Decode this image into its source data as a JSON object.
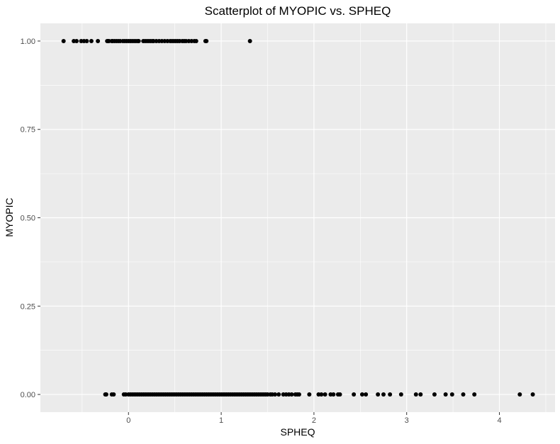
{
  "chart_data": {
    "type": "scatter",
    "title": "Scatterplot of MYOPIC vs. SPHEQ",
    "xlabel": "SPHEQ",
    "ylabel": "MYOPIC",
    "xlim": [
      -0.95,
      4.6
    ],
    "ylim": [
      -0.05,
      1.05
    ],
    "x_ticks": [
      0,
      1,
      2,
      3,
      4
    ],
    "x_tick_labels": [
      "0",
      "1",
      "2",
      "3",
      "4"
    ],
    "y_ticks": [
      0,
      0.25,
      0.5,
      0.75,
      1
    ],
    "y_tick_labels": [
      "0.00",
      "0.25",
      "0.50",
      "0.75",
      "1.00"
    ],
    "grid": true,
    "legend": "none",
    "colors": {
      "panel": "#ebebeb",
      "grid_major": "#ffffff",
      "point": "#000000"
    },
    "series": [
      {
        "values_x": [
          -0.7,
          -0.59,
          -0.56,
          -0.51,
          -0.48,
          -0.45,
          -0.4,
          -0.33,
          -0.23,
          -0.22,
          -0.21,
          -0.18,
          -0.17,
          -0.15,
          -0.13,
          -0.11,
          -0.09,
          -0.06,
          -0.04,
          -0.02,
          0.0,
          0.02,
          0.04,
          0.06,
          0.08,
          0.1,
          0.11,
          0.16,
          0.18,
          0.2,
          0.22,
          0.24,
          0.26,
          0.27,
          0.3,
          0.33,
          0.36,
          0.39,
          0.42,
          0.45,
          0.47,
          0.49,
          0.51,
          0.53,
          0.55,
          0.58,
          0.6,
          0.62,
          0.65,
          0.68,
          0.71,
          0.73,
          0.83,
          0.84,
          1.31
        ],
        "values_y": [
          1,
          1,
          1,
          1,
          1,
          1,
          1,
          1,
          1,
          1,
          1,
          1,
          1,
          1,
          1,
          1,
          1,
          1,
          1,
          1,
          1,
          1,
          1,
          1,
          1,
          1,
          1,
          1,
          1,
          1,
          1,
          1,
          1,
          1,
          1,
          1,
          1,
          1,
          1,
          1,
          1,
          1,
          1,
          1,
          1,
          1,
          1,
          1,
          1,
          1,
          1,
          1,
          1,
          1,
          1
        ]
      },
      {
        "values_x": [
          -0.25,
          -0.24,
          -0.18,
          -0.16,
          -0.05,
          -0.03,
          0.0,
          0.02,
          0.04,
          0.06,
          0.08,
          0.1,
          0.12,
          0.14,
          0.16,
          0.18,
          0.2,
          0.22,
          0.24,
          0.26,
          0.28,
          0.3,
          0.32,
          0.34,
          0.36,
          0.38,
          0.4,
          0.42,
          0.44,
          0.46,
          0.48,
          0.5,
          0.52,
          0.54,
          0.56,
          0.58,
          0.6,
          0.62,
          0.64,
          0.66,
          0.68,
          0.7,
          0.72,
          0.74,
          0.76,
          0.78,
          0.8,
          0.82,
          0.84,
          0.86,
          0.88,
          0.9,
          0.92,
          0.94,
          0.96,
          0.98,
          1.0,
          1.02,
          1.04,
          1.06,
          1.08,
          1.1,
          1.12,
          1.14,
          1.16,
          1.18,
          1.2,
          1.22,
          1.24,
          1.26,
          1.28,
          1.3,
          1.32,
          1.34,
          1.36,
          1.38,
          1.4,
          1.42,
          1.44,
          1.46,
          1.48,
          1.5,
          1.53,
          1.55,
          1.58,
          1.62,
          1.67,
          1.7,
          1.73,
          1.76,
          1.8,
          1.82,
          1.84,
          1.95,
          2.05,
          2.08,
          2.12,
          2.18,
          2.21,
          2.26,
          2.28,
          2.43,
          2.52,
          2.56,
          2.69,
          2.75,
          2.82,
          2.94,
          3.1,
          3.15,
          3.3,
          3.42,
          3.49,
          3.61,
          3.73,
          4.22,
          4.36
        ],
        "values_y": [
          0,
          0,
          0,
          0,
          0,
          0,
          0,
          0,
          0,
          0,
          0,
          0,
          0,
          0,
          0,
          0,
          0,
          0,
          0,
          0,
          0,
          0,
          0,
          0,
          0,
          0,
          0,
          0,
          0,
          0,
          0,
          0,
          0,
          0,
          0,
          0,
          0,
          0,
          0,
          0,
          0,
          0,
          0,
          0,
          0,
          0,
          0,
          0,
          0,
          0,
          0,
          0,
          0,
          0,
          0,
          0,
          0,
          0,
          0,
          0,
          0,
          0,
          0,
          0,
          0,
          0,
          0,
          0,
          0,
          0,
          0,
          0,
          0,
          0,
          0,
          0,
          0,
          0,
          0,
          0,
          0,
          0,
          0,
          0,
          0,
          0,
          0,
          0,
          0,
          0,
          0,
          0,
          0,
          0,
          0,
          0,
          0,
          0,
          0,
          0,
          0,
          0,
          0,
          0,
          0,
          0,
          0,
          0,
          0,
          0,
          0,
          0,
          0,
          0,
          0,
          0,
          0
        ]
      }
    ]
  }
}
